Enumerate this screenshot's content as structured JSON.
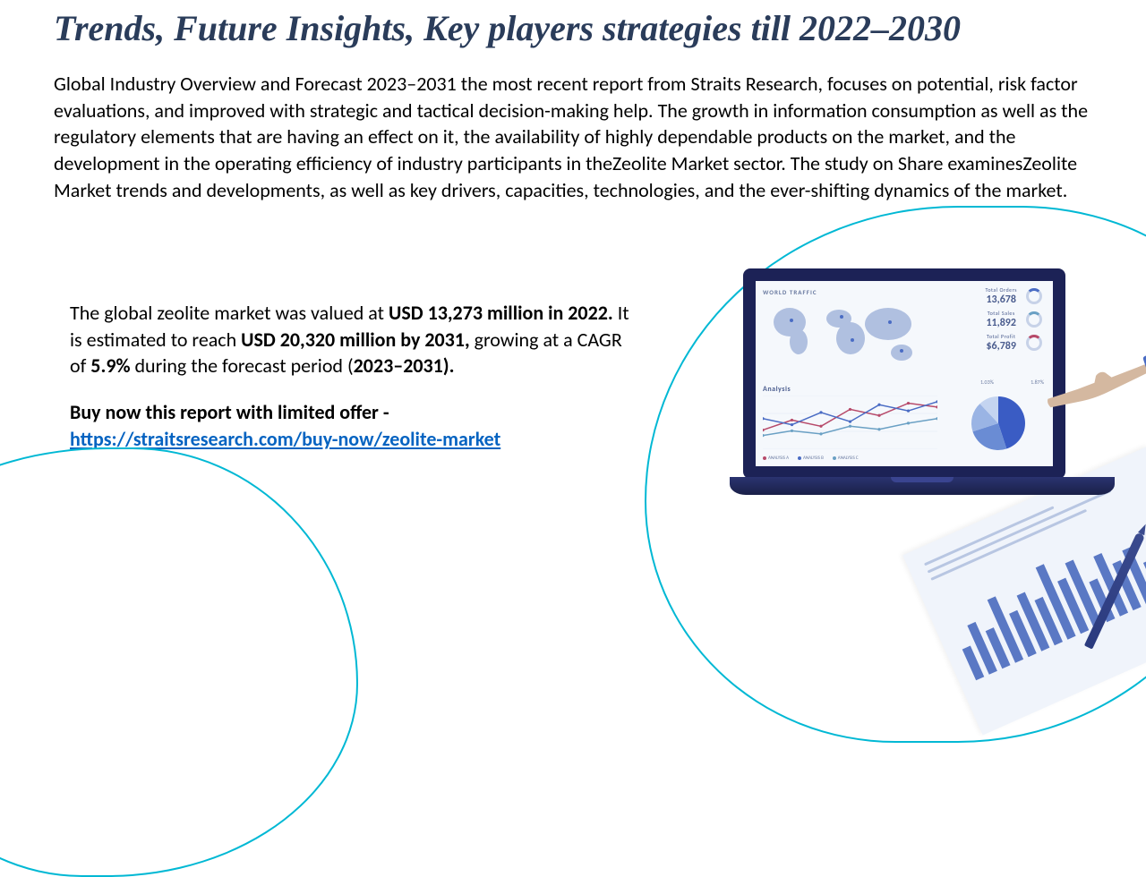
{
  "title": "Trends, Future Insights, Key players strategies till 2022–2030",
  "body_text": "Global Industry Overview and Forecast 2023–2031 the most recent report from Straits Research, focuses on potential, risk factor evaluations, and improved with strategic and tactical decision-making help. The growth in information consumption as well as the regulatory elements that are having an effect on it, the availability of highly dependable products on the market, and the development in the operating efficiency of industry participants in theZeolite Market sector. The study on Share examinesZeolite Market trends and developments, as well as key drivers, capacities, technologies, and the ever-shifting dynamics of the market.",
  "summary": {
    "seg1": "The global zeolite market was valued at ",
    "seg2_bold": "USD 13,273 million in 2022.",
    "seg3": " It is estimated to reach ",
    "seg4_bold": "USD 20,320 million by 2031,",
    "seg5": " growing at a CAGR of ",
    "seg6_bold": "5.9%",
    "seg7": " during the forecast period (",
    "seg8_bold": "2023–2031).",
    "cta_label": "Buy now this report with limited offer -",
    "link_text": "https://straitsresearch.com/buy-now/zeolite-market"
  },
  "laptop_screen": {
    "map_title": "WORLD TRAFFIC",
    "stats": {
      "orders_label": "Total Orders",
      "orders_value": "13,678",
      "sales_label": "Total Sales",
      "sales_value": "11,892",
      "profit_label": "Total Profit",
      "profit_value": "$6,789"
    },
    "analysis_label": "Analysis",
    "pie_pct_a": "1.03%",
    "pie_pct_b": "1.87%",
    "line_chart": {
      "type": "line",
      "series": [
        {
          "color": "#b74a6a",
          "points": [
            25,
            38,
            30,
            52,
            44,
            60,
            55
          ]
        },
        {
          "color": "#4a6cc4",
          "points": [
            40,
            32,
            48,
            36,
            58,
            50,
            62
          ]
        },
        {
          "color": "#6aa0c4",
          "points": [
            18,
            24,
            20,
            30,
            26,
            34,
            40
          ]
        }
      ],
      "x_count": 7,
      "y_max": 70
    },
    "legend": [
      {
        "label": "ANALYSIS A",
        "color": "#b74a6a"
      },
      {
        "label": "ANALYSIS B",
        "color": "#4a6cc4"
      },
      {
        "label": "ANALYSIS C",
        "color": "#6aa0c4"
      }
    ],
    "pie": {
      "type": "pie",
      "slices": [
        {
          "color": "#3a5cc4",
          "pct": 45
        },
        {
          "color": "#6a8cd4",
          "pct": 25
        },
        {
          "color": "#9ab4e4",
          "pct": 18
        },
        {
          "color": "#c4d4f0",
          "pct": 12
        }
      ]
    }
  },
  "paper_bars": {
    "type": "bar",
    "values": [
      35,
      55,
      42,
      70,
      48,
      62,
      50,
      80,
      58,
      72,
      45,
      66,
      52,
      60,
      40
    ],
    "color": "#5a78c4",
    "y_max": 100
  },
  "colors": {
    "title": "#2a3c5a",
    "blob_border": "#00b8d4",
    "link": "#0563c1",
    "laptop_frame": "#1c2256",
    "laptop_body": "#2a3a8e",
    "screen_bg": "#f5f8fc"
  }
}
